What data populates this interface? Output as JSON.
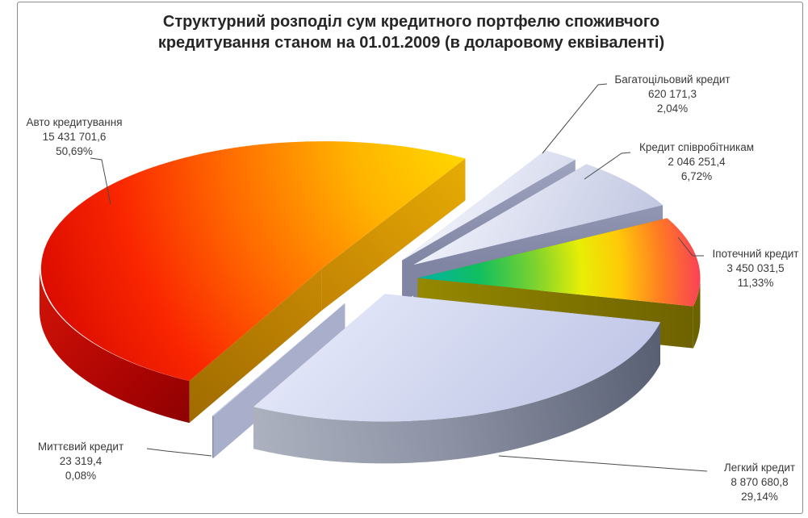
{
  "chart_data": {
    "type": "pie",
    "style": "3d-exploded",
    "title": "Структурний розподіл сум кредитного портфелю споживчого\nкредитування станом на 01.01.2009 (в доларовому еквіваленті)",
    "legend": "none",
    "label_format": "name, value, percent",
    "slices": [
      {
        "label": "Авто кредитування",
        "value": "15 431 701,6",
        "percent": "50,69%",
        "value_num": 15431701.6,
        "percent_num": 50.69,
        "color": "#FF8A00"
      },
      {
        "label": "Багатоцільовий кредит",
        "value": "620 171,3",
        "percent": "2,04%",
        "value_num": 620171.3,
        "percent_num": 2.04,
        "color": "#C9CEE8"
      },
      {
        "label": "Кредит співробітникам",
        "value": "2 046 251,4",
        "percent": "6,72%",
        "value_num": 2046251.4,
        "percent_num": 6.72,
        "color": "#C9CEE8"
      },
      {
        "label": "Іпотечний кредит",
        "value": "3 450 031,5",
        "percent": "11,33%",
        "value_num": 3450031.5,
        "percent_num": 11.33,
        "color": "rainbow-gradient"
      },
      {
        "label": "Легкий кредит",
        "value": "8 870 680,8",
        "percent": "29,14%",
        "value_num": 8870680.8,
        "percent_num": 29.14,
        "color": "#CDD3EE"
      },
      {
        "label": "Миттєвий кредит",
        "value": "23 319,4",
        "percent": "0,08%",
        "value_num": 23319.4,
        "percent_num": 0.08,
        "color": "#C9CEE8"
      }
    ],
    "accent_colors": {
      "auto_side_gold": "#C98A04",
      "auto_rim_dark_red": "#A80303",
      "ipoteka_side_olive": "#8A7D00",
      "grey_rim": "#8C92A4",
      "border": "#8C8C8C"
    }
  }
}
